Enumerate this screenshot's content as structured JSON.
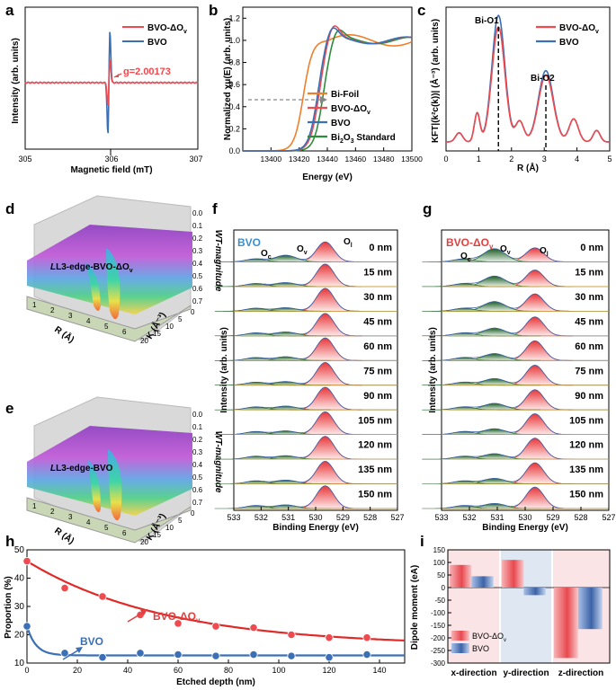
{
  "colors": {
    "bvo_dov": "#ee4a4f",
    "bvo": "#3b6fb6",
    "bi_foil": "#ef7f2a",
    "bi2o3": "#2e8b3c",
    "oc": "#1e5c23",
    "ov": "#2f7a35",
    "ol": "#e0403f",
    "fit_dov": "#e02a28",
    "fit_bvo": "#c8372e",
    "blue_shade": "#dfe7f3",
    "pink_shade": "#fbe4e6"
  },
  "panels": {
    "a": "a",
    "b": "b",
    "c": "c",
    "d": "d",
    "e": "e",
    "f": "f",
    "g": "g",
    "h": "h",
    "i": "i"
  },
  "chart_data": [
    {
      "id": "a",
      "type": "line",
      "xlabel": "Magnetic field (mT)",
      "ylabel": "Intensity (arb. units)",
      "x_ticks": [
        "305",
        "306",
        "307"
      ],
      "xlim": [
        305,
        307
      ],
      "annotation": "g=2.00173",
      "series": [
        {
          "name": "BVO-ΔO",
          "name_sub": "v",
          "peak_amplitude": 0.45,
          "center": 305.97
        },
        {
          "name": "BVO",
          "peak_amplitude": 1.0,
          "center": 305.97
        }
      ]
    },
    {
      "id": "b",
      "type": "line",
      "xlabel": "Energy (eV)",
      "ylabel": "Normalized χμ(E) (arb. units)",
      "xlim": [
        13380,
        13500
      ],
      "ylim": [
        0,
        1.3
      ],
      "x_ticks": [
        "13400",
        "13420",
        "13440",
        "13460",
        "13480",
        "13500"
      ],
      "y_ticks": [
        "0.0",
        "0.2",
        "0.4",
        "0.6",
        "0.8",
        "1.0",
        "1.2"
      ],
      "series": [
        {
          "name": "Bi-Foil",
          "edge": 13423,
          "peak": 1.0
        },
        {
          "name": "BVO-ΔO",
          "name_sub": "v",
          "edge": 13434,
          "peak": 1.14
        },
        {
          "name": "BVO",
          "edge": 13433,
          "peak": 1.12
        },
        {
          "name": "Bi",
          "name_sub": "2",
          "name_tail": "O",
          "name_sub2": "3",
          "name_end": " Standard",
          "edge": 13437,
          "peak": 1.1
        }
      ]
    },
    {
      "id": "c",
      "type": "line",
      "xlabel": "R (Å)",
      "ylabel": "KFT|(k²c(k))| (Å⁻³) (arb. units)",
      "xlim": [
        0,
        5
      ],
      "x_ticks": [
        "0",
        "1",
        "2",
        "3",
        "4",
        "5"
      ],
      "annotations": [
        "Bi-O1",
        "Bi-O2"
      ],
      "markers": [
        1.6,
        3.05
      ],
      "series": [
        {
          "name": "BVO-ΔO",
          "name_sub": "v",
          "peak1": 1.0,
          "peak2": 0.58
        },
        {
          "name": "BVO",
          "peak1": 1.1,
          "peak2": 0.62
        }
      ]
    },
    {
      "id": "d",
      "type": "surface3d",
      "title": "L3-edge-BVO-ΔO",
      "title_sub": "v",
      "zlabel": "WT-magnitude",
      "xlabel": "R (Å)",
      "ylabel": "K (Å⁻³)",
      "z_ticks": [
        "0.0",
        "0.1",
        "0.2",
        "0.3",
        "0.4",
        "0.5",
        "0.6",
        "0.7"
      ],
      "x_ticks": [
        "1",
        "2",
        "3",
        "4",
        "5",
        "6"
      ],
      "y_ticks": [
        "0",
        "5",
        "10",
        "15",
        "20"
      ]
    },
    {
      "id": "e",
      "type": "surface3d",
      "title": "L3-edge-BVO",
      "zlabel": "WT-magnitude",
      "xlabel": "R (Å)",
      "ylabel": "K (Å⁻³)",
      "z_ticks": [
        "0.0",
        "0.1",
        "0.2",
        "0.3",
        "0.4",
        "0.5",
        "0.6",
        "0.7"
      ],
      "x_ticks": [
        "1",
        "2",
        "3",
        "4",
        "5",
        "6"
      ],
      "y_ticks": [
        "0",
        "5",
        "10",
        "15",
        "20"
      ]
    },
    {
      "id": "f",
      "type": "area",
      "title": "BVO",
      "xlabel": "Binding Energy (eV)",
      "ylabel": "Intensity (arb. units)",
      "x_ticks": [
        "533",
        "532",
        "531",
        "530",
        "529",
        "528",
        "527"
      ],
      "peak_labels": [
        "O",
        "c",
        "O",
        "v",
        "O",
        "l"
      ],
      "depths": [
        "0 nm",
        "15 nm",
        "30 nm",
        "45 nm",
        "60 nm",
        "75 nm",
        "90 nm",
        "105 nm",
        "120 nm",
        "135 nm",
        "150 nm"
      ],
      "ov_fraction": [
        0.23,
        0.135,
        0.12,
        0.135,
        0.13,
        0.125,
        0.13,
        0.125,
        0.12,
        0.13,
        0.125
      ]
    },
    {
      "id": "g",
      "type": "area",
      "title": "BVO-ΔO",
      "title_sub": "v",
      "xlabel": "Binding Energy (eV)",
      "ylabel": "Intensity (arb. units)",
      "x_ticks": [
        "533",
        "532",
        "531",
        "530",
        "529",
        "528",
        "527"
      ],
      "peak_labels": [
        "O",
        "c",
        "O",
        "v",
        "O",
        "l"
      ],
      "depths": [
        "0 nm",
        "15 nm",
        "30 nm",
        "45 nm",
        "60 nm",
        "75 nm",
        "90 nm",
        "105 nm",
        "120 nm",
        "135 nm",
        "150 nm"
      ],
      "ov_fraction": [
        0.46,
        0.365,
        0.335,
        0.27,
        0.24,
        0.23,
        0.225,
        0.2,
        0.19,
        0.19,
        0.175
      ]
    },
    {
      "id": "h",
      "type": "scatter",
      "xlabel": "Etched depth (nm)",
      "ylabel": "Proportion (%)",
      "xlim": [
        0,
        150
      ],
      "ylim": [
        10,
        50
      ],
      "x_ticks": [
        "0",
        "20",
        "40",
        "60",
        "80",
        "100",
        "120",
        "140"
      ],
      "y_ticks": [
        "10",
        "20",
        "30",
        "40",
        "50"
      ],
      "x": [
        0,
        15,
        30,
        45,
        60,
        75,
        90,
        105,
        120,
        135
      ],
      "series": [
        {
          "name": "BVO-ΔO",
          "name_sub": "v",
          "values": [
            46,
            36.5,
            33.5,
            27,
            24,
            23,
            22.5,
            20,
            19,
            19
          ]
        },
        {
          "name": "BVO",
          "values": [
            23,
            13.5,
            12,
            13.5,
            13,
            12.5,
            13,
            12.5,
            12,
            13
          ]
        }
      ]
    },
    {
      "id": "i",
      "type": "bar",
      "ylabel": "Dipole moment (eA)",
      "categories": [
        "x-direction",
        "y-direction",
        "z-direction"
      ],
      "ylim": [
        -300,
        150
      ],
      "y_ticks": [
        "150",
        "100",
        "50",
        "0",
        "-50",
        "-100",
        "-150",
        "-200",
        "-250",
        "-300"
      ],
      "series": [
        {
          "name": "BVO-ΔO",
          "name_sub": "v",
          "values": [
            90,
            110,
            -280
          ]
        },
        {
          "name": "BVO",
          "values": [
            45,
            -30,
            -165
          ]
        }
      ]
    }
  ]
}
